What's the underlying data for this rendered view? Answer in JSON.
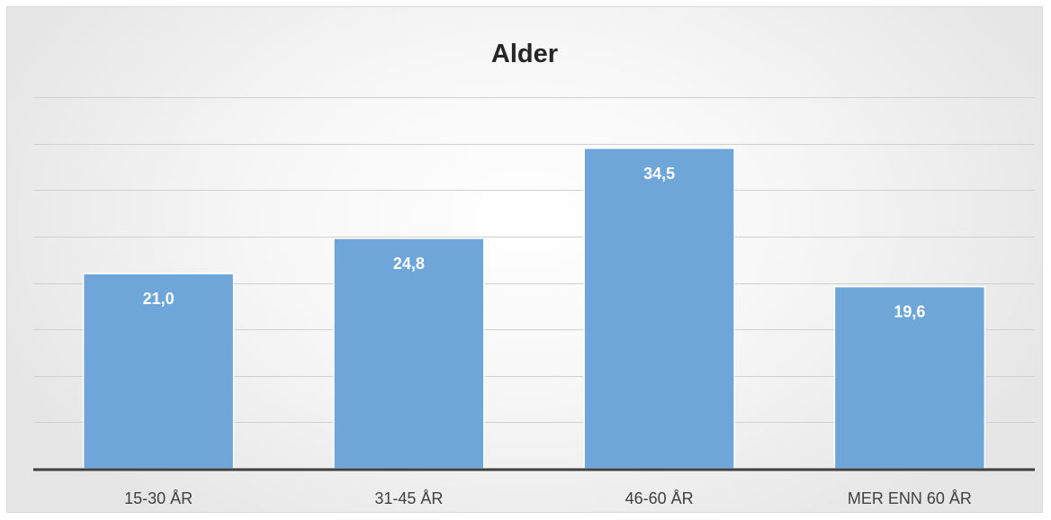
{
  "chart_data": {
    "type": "bar",
    "title": "Alder",
    "categories": [
      "15-30 ÅR",
      "31-45 ÅR",
      "46-60 ÅR",
      "MER ENN 60 ÅR"
    ],
    "values": [
      21.0,
      24.8,
      34.5,
      19.6
    ],
    "value_labels": [
      "21,0",
      "24,8",
      "34,5",
      "19,6"
    ],
    "ylim": [
      0,
      40
    ],
    "grid": true,
    "bar_color": "#6fa6da",
    "bar_border_color": "#ffffff",
    "axis_color": "#404040",
    "grid_color": "#d0d0d0"
  }
}
